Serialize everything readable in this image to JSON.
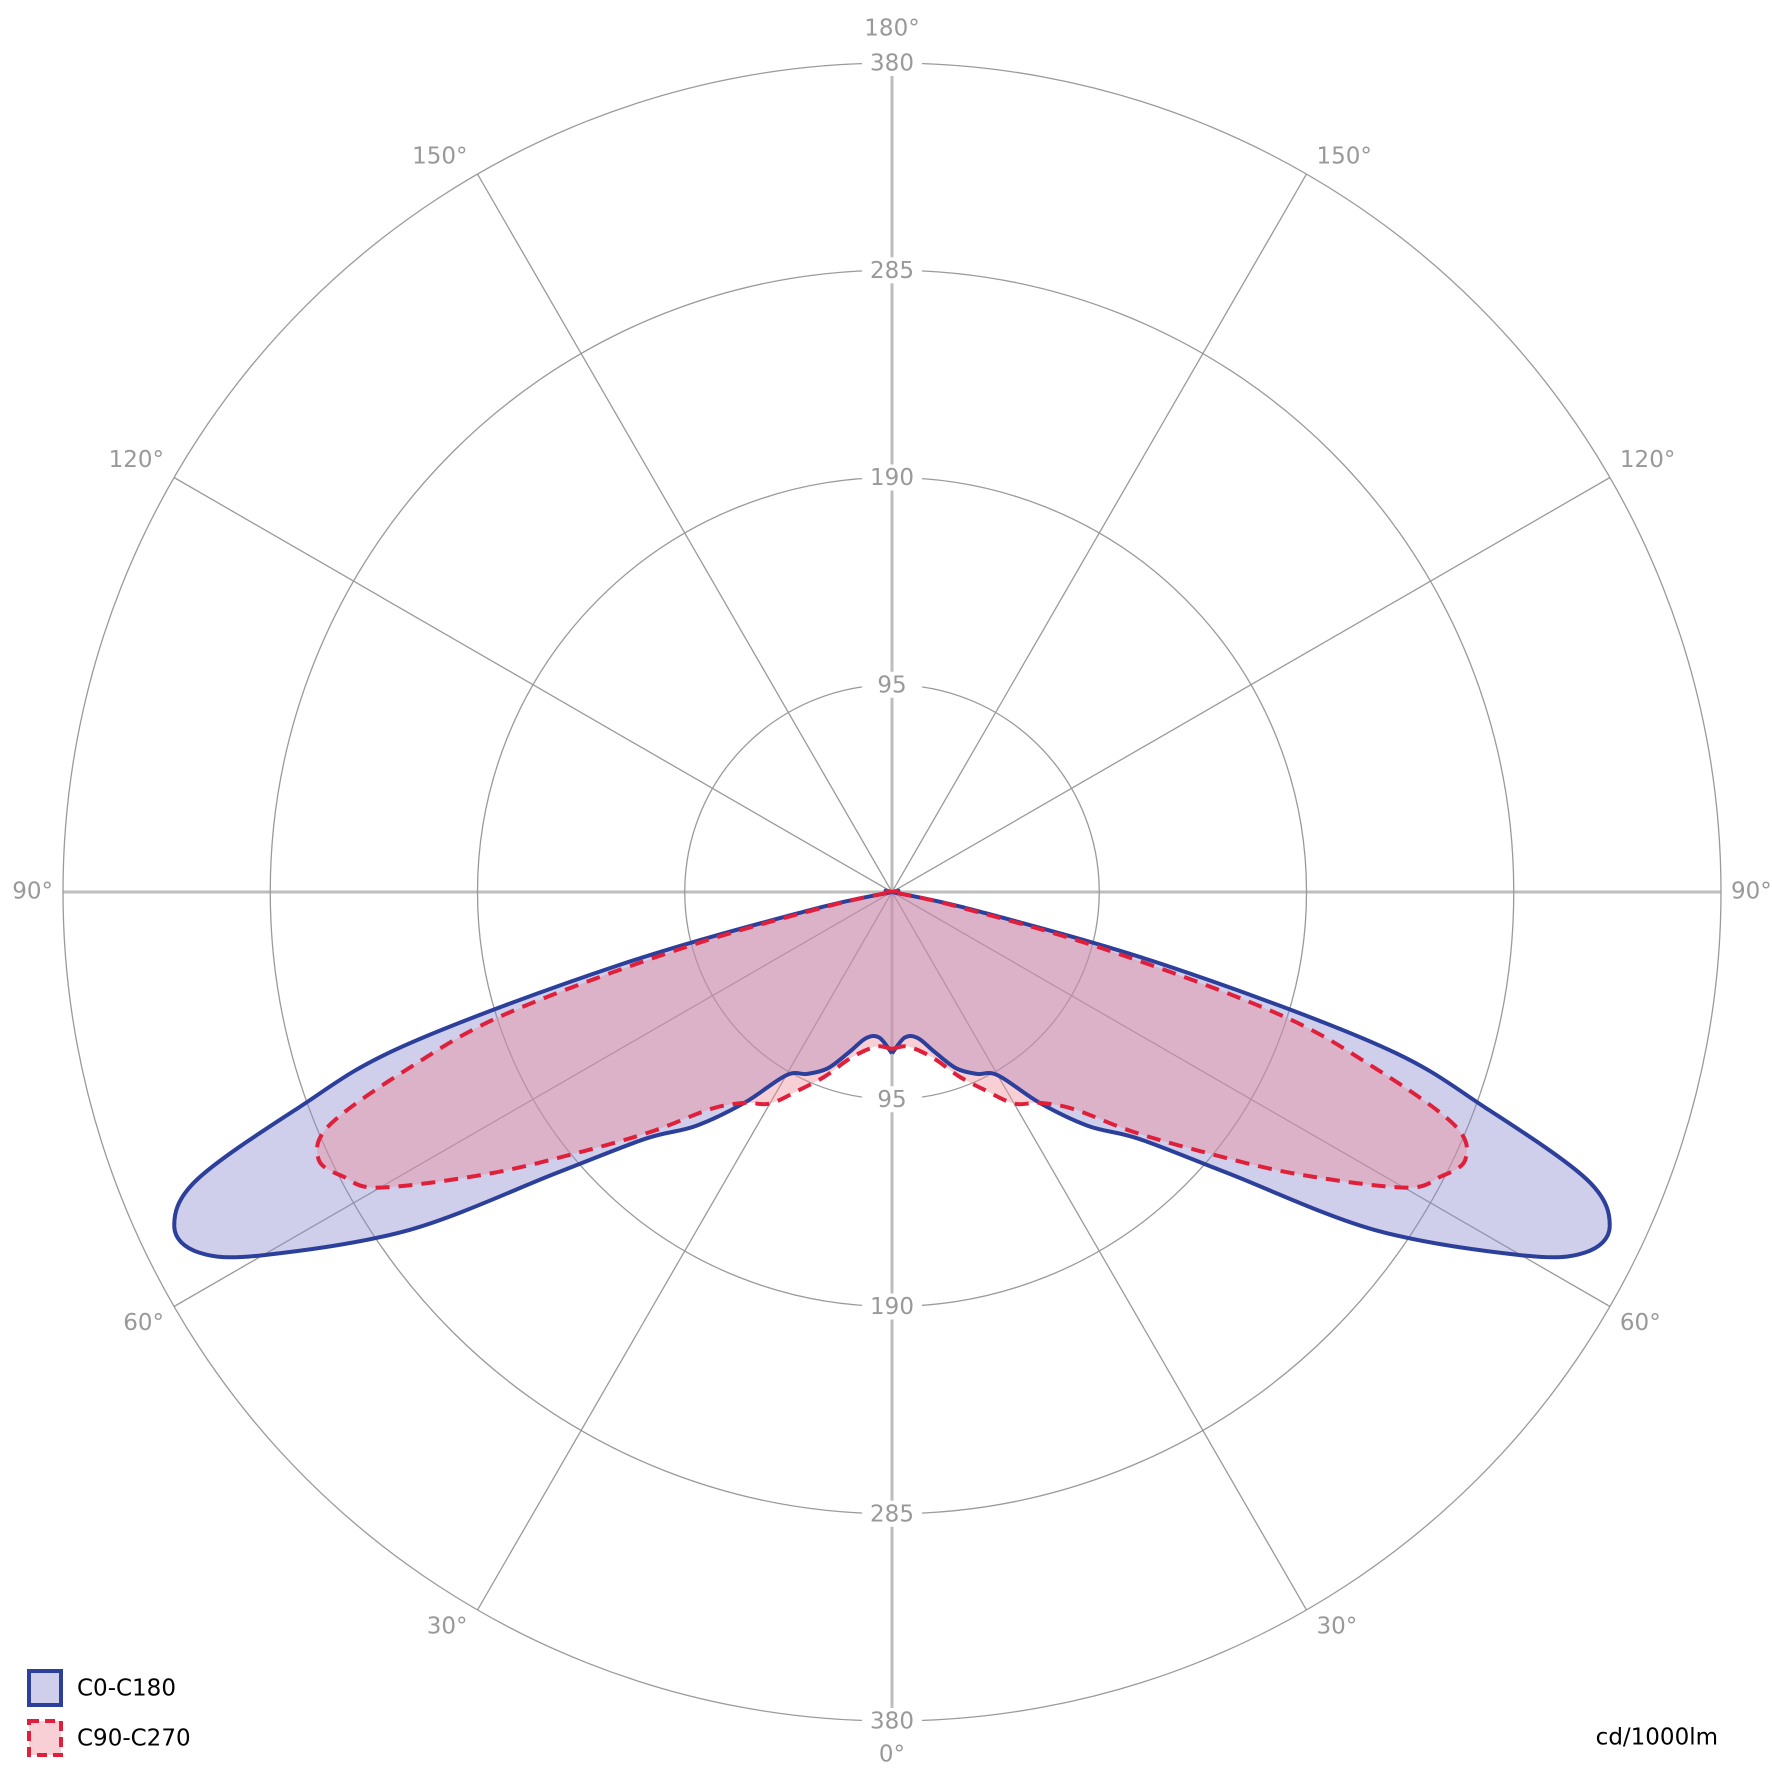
{
  "chart_data": {
    "type": "polar",
    "unit_label": "cd/1000lm",
    "x": [
      0,
      5,
      10,
      15,
      20,
      25,
      30,
      35,
      40,
      45,
      50,
      55,
      60,
      62.5,
      65,
      67.5,
      70,
      72.5,
      75,
      77.5,
      80,
      85,
      90
    ],
    "series": [
      {
        "name": "C0-C180",
        "color": "#2b3f9b",
        "fill": "#8c8ad0",
        "line_style": "solid",
        "values": [
          74,
          67,
          68,
          76,
          86,
          92,
          97,
          118,
          140,
          160,
          200,
          270,
          333,
          358,
          363,
          345,
          290,
          235,
          130,
          40,
          0,
          0,
          0
        ]
      },
      {
        "name": "C90-C270",
        "color": "#e0203a",
        "fill": "#ee8c9a",
        "line_style": "dashed",
        "values": [
          72,
          71,
          74,
          80,
          90,
          100,
          112,
          118,
          130,
          155,
          185,
          225,
          271,
          283,
          290,
          279,
          235,
          185,
          100,
          30,
          0,
          0,
          0
        ]
      }
    ],
    "rlim": [
      0,
      380
    ],
    "rticks": [
      95,
      190,
      285,
      380
    ],
    "angle_ticks": [
      {
        "value": 0,
        "label": "0°"
      },
      {
        "value": 30,
        "label": "30°"
      },
      {
        "value": 60,
        "label": "60°"
      },
      {
        "value": 90,
        "label": "90°"
      },
      {
        "value": 120,
        "label": "120°"
      },
      {
        "value": 150,
        "label": "150°"
      },
      {
        "value": 180,
        "label": "180°"
      }
    ],
    "grid": true,
    "legend": "bottom-left"
  }
}
